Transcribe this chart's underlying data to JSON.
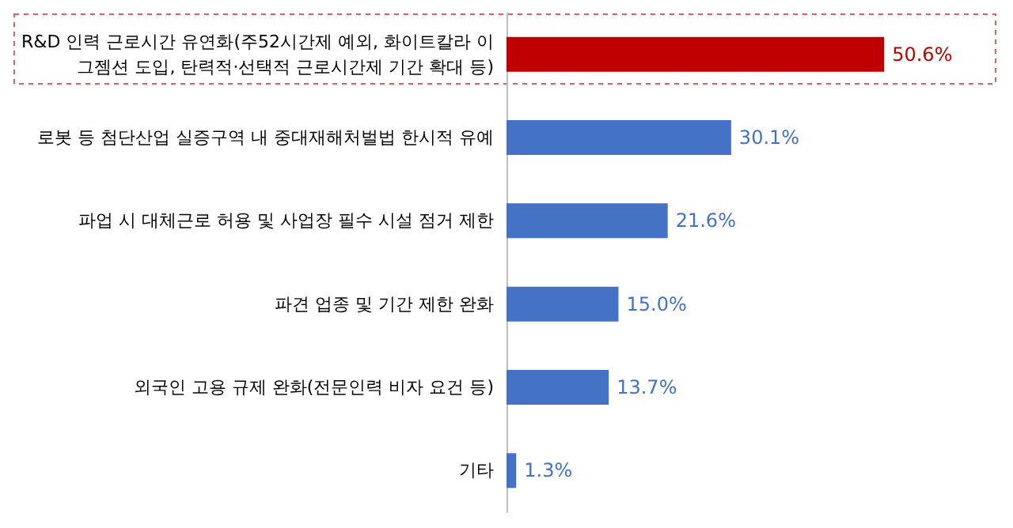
{
  "chart_data": {
    "type": "bar",
    "orientation": "horizontal",
    "categories": [
      "R&D 인력 근로시간 유연화(주52시간제 예외, 화이트칼라 이그젬션 도입, 탄력적·선택적 근로시간제 기간 확대 등)",
      "로봇 등 첨단산업 실증구역 내 중대재해처벌법 한시적 유예",
      "파업 시 대체근로 허용 및 사업장 필수 시설 점거 제한",
      "파견 업종 및 기간 제한 완화",
      "외국인 고용 규제 완화(전문인력 비자 요건 등)",
      "기타"
    ],
    "values": [
      50.6,
      30.1,
      21.6,
      15.0,
      13.7,
      1.3
    ],
    "colors": [
      "#c00000",
      "#4472c4",
      "#4472c4",
      "#4472c4",
      "#4472c4",
      "#4472c4"
    ],
    "value_labels": [
      "50.6%",
      "30.1%",
      "21.6%",
      "15.0%",
      "13.7%",
      "1.3%"
    ]
  }
}
